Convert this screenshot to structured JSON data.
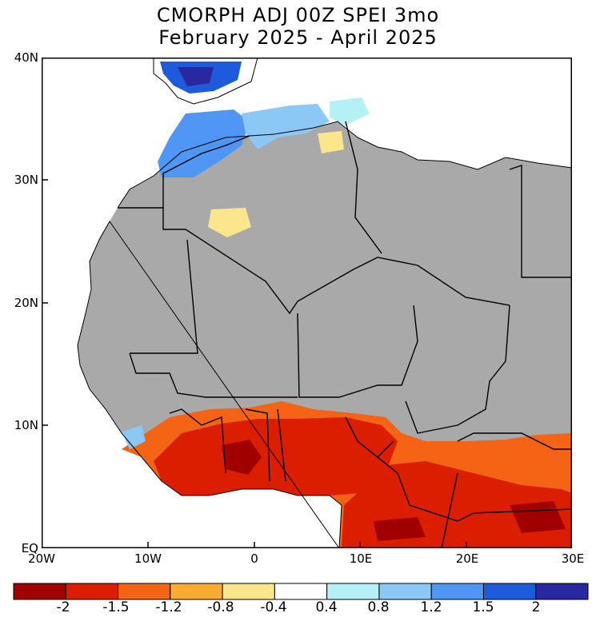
{
  "title": {
    "line1": "CMORPH ADJ 00Z SPEI 3mo",
    "line2": "February 2025 - April 2025"
  },
  "map": {
    "lat_labels": [
      "40N",
      "30N",
      "20N",
      "10N",
      "EQ"
    ],
    "lon_labels": [
      "20W",
      "10W",
      "0",
      "10E",
      "20E",
      "30E"
    ],
    "lat_range": [
      0,
      40
    ],
    "lon_range": [
      -20,
      30
    ],
    "colors": {
      "masked_land": "#a9a9a9",
      "ocean": "#ffffff",
      "border": "#000000"
    }
  },
  "colorbar": {
    "labels": [
      "-2",
      "-1.5",
      "-1.2",
      "-0.8",
      "-0.4",
      "0.4",
      "0.8",
      "1.2",
      "1.5",
      "2"
    ],
    "colors": [
      "#a00000",
      "#dc1e00",
      "#f56414",
      "#fbaa32",
      "#fbe68c",
      "#ffffff",
      "#b4f0f5",
      "#8cc8f5",
      "#5096f5",
      "#1e5adc",
      "#2828a0"
    ]
  }
}
